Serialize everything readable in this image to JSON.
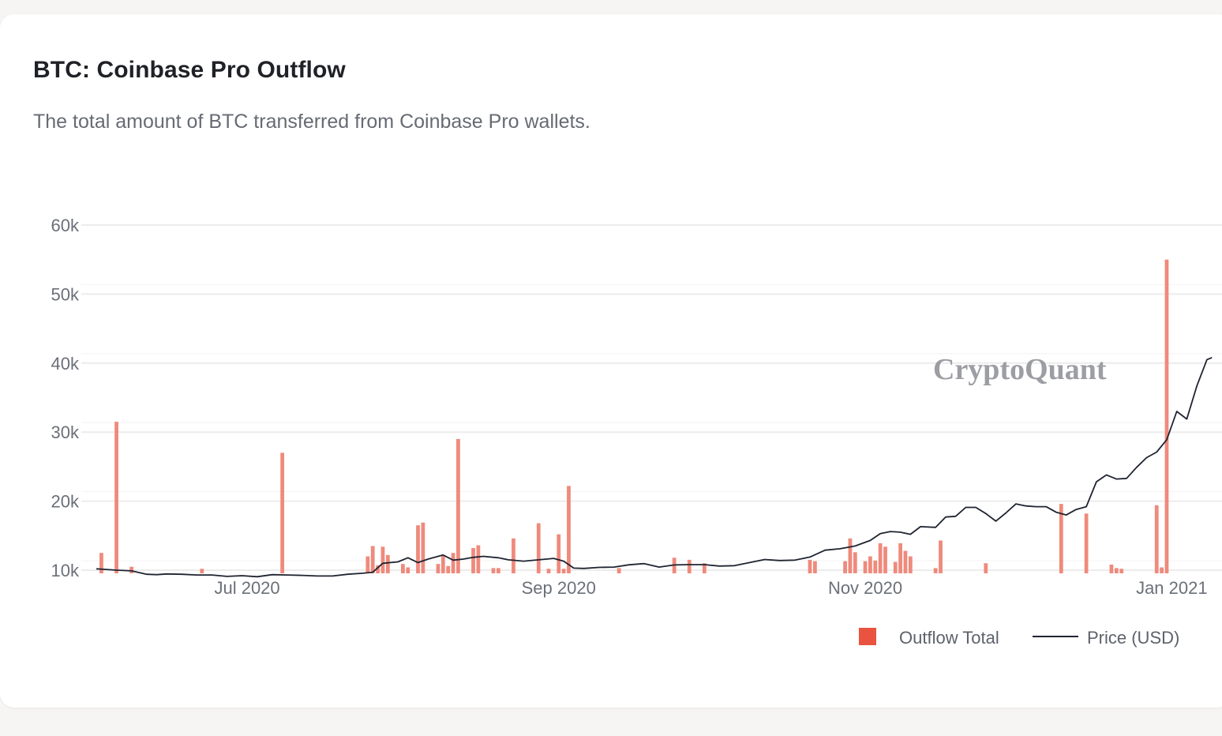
{
  "card": {
    "title": "BTC: Coinbase Pro Outflow",
    "subtitle": "The total amount of BTC transferred from Coinbase Pro wallets."
  },
  "watermark": "CryptoQuant",
  "colors": {
    "outflow": "#ef8a7c",
    "outflow_legend": "#e9533f",
    "price": "#1f2430",
    "grid": "#ececec"
  },
  "chart_data": {
    "type": "bar",
    "title": "BTC: Coinbase Pro Outflow",
    "subtitle": "The total amount of BTC transferred from Coinbase Pro wallets.",
    "x_start": "2020-06-01",
    "x_end": "2021-01-11",
    "xlim": [
      "2020-05-29",
      "2021-01-11"
    ],
    "ylim": [
      10000,
      60000
    ],
    "y_ticks": [
      10000,
      20000,
      30000,
      40000,
      50000,
      60000
    ],
    "y_tick_labels": [
      "10k",
      "20k",
      "30k",
      "40k",
      "50k",
      "60k"
    ],
    "x_ticks": [
      "2020-07-01",
      "2020-09-01",
      "2020-11-01",
      "2021-01-01"
    ],
    "x_tick_labels": [
      "Jul 2020",
      "Sep 2020",
      "Nov 2020",
      "Jan 2021"
    ],
    "grid": true,
    "legend_position": "bottom-right",
    "series": [
      {
        "name": "Outflow Total",
        "type": "bar",
        "x": [
          "2020-06-02",
          "2020-06-05",
          "2020-06-08",
          "2020-06-22",
          "2020-07-08",
          "2020-07-25",
          "2020-07-26",
          "2020-07-27",
          "2020-07-28",
          "2020-07-29",
          "2020-08-01",
          "2020-08-02",
          "2020-08-04",
          "2020-08-05",
          "2020-08-08",
          "2020-08-09",
          "2020-08-10",
          "2020-08-11",
          "2020-08-12",
          "2020-08-15",
          "2020-08-16",
          "2020-08-19",
          "2020-08-20",
          "2020-08-23",
          "2020-08-28",
          "2020-08-30",
          "2020-09-01",
          "2020-09-02",
          "2020-09-03",
          "2020-09-13",
          "2020-09-24",
          "2020-09-27",
          "2020-09-30",
          "2020-10-21",
          "2020-10-22",
          "2020-10-28",
          "2020-10-29",
          "2020-10-30",
          "2020-11-01",
          "2020-11-02",
          "2020-11-03",
          "2020-11-04",
          "2020-11-05",
          "2020-11-07",
          "2020-11-08",
          "2020-11-09",
          "2020-11-10",
          "2020-11-15",
          "2020-11-16",
          "2020-11-25",
          "2020-12-10",
          "2020-12-15",
          "2020-12-20",
          "2020-12-21",
          "2020-12-22",
          "2020-12-29",
          "2020-12-30",
          "2020-12-31"
        ],
        "values": [
          12500,
          31500,
          10500,
          10200,
          27000,
          12000,
          13500,
          10700,
          13400,
          12200,
          10900,
          10400,
          16500,
          16900,
          10900,
          12100,
          10600,
          12500,
          29000,
          13200,
          13600,
          10300,
          10300,
          14600,
          16800,
          10200,
          15200,
          10200,
          22200,
          10300,
          11800,
          11500,
          11000,
          11500,
          11300,
          11300,
          14600,
          12600,
          11300,
          12000,
          11400,
          13900,
          13400,
          11200,
          13900,
          12800,
          12000,
          10300,
          14300,
          11000,
          19600,
          18200,
          10800,
          10300,
          10200,
          19400,
          10400,
          55000
        ]
      },
      {
        "name": "Price (USD)",
        "type": "line",
        "x": [
          "2020-06-01",
          "2020-06-03",
          "2020-06-05",
          "2020-06-08",
          "2020-06-11",
          "2020-06-13",
          "2020-06-15",
          "2020-06-18",
          "2020-06-21",
          "2020-06-24",
          "2020-06-27",
          "2020-06-30",
          "2020-07-03",
          "2020-07-06",
          "2020-07-09",
          "2020-07-12",
          "2020-07-15",
          "2020-07-18",
          "2020-07-21",
          "2020-07-24",
          "2020-07-26",
          "2020-07-28",
          "2020-07-31",
          "2020-08-02",
          "2020-08-04",
          "2020-08-06",
          "2020-08-09",
          "2020-08-11",
          "2020-08-13",
          "2020-08-15",
          "2020-08-17",
          "2020-08-20",
          "2020-08-22",
          "2020-08-25",
          "2020-08-28",
          "2020-08-31",
          "2020-09-02",
          "2020-09-04",
          "2020-09-06",
          "2020-09-09",
          "2020-09-12",
          "2020-09-15",
          "2020-09-18",
          "2020-09-21",
          "2020-09-24",
          "2020-09-27",
          "2020-09-30",
          "2020-10-03",
          "2020-10-06",
          "2020-10-09",
          "2020-10-12",
          "2020-10-15",
          "2020-10-18",
          "2020-10-21",
          "2020-10-24",
          "2020-10-27",
          "2020-10-30",
          "2020-11-02",
          "2020-11-04",
          "2020-11-06",
          "2020-11-08",
          "2020-11-10",
          "2020-11-12",
          "2020-11-15",
          "2020-11-17",
          "2020-11-19",
          "2020-11-21",
          "2020-11-23",
          "2020-11-25",
          "2020-11-27",
          "2020-11-29",
          "2020-12-01",
          "2020-12-03",
          "2020-12-05",
          "2020-12-07",
          "2020-12-09",
          "2020-12-11",
          "2020-12-13",
          "2020-12-15",
          "2020-12-17",
          "2020-12-19",
          "2020-12-21",
          "2020-12-23",
          "2020-12-25",
          "2020-12-27",
          "2020-12-29",
          "2020-12-31",
          "2021-01-02",
          "2021-01-04",
          "2021-01-06",
          "2021-01-08",
          "2021-01-09"
        ],
        "values": [
          10200,
          10100,
          10000,
          9900,
          9400,
          9350,
          9450,
          9400,
          9300,
          9300,
          9100,
          9200,
          9050,
          9350,
          9300,
          9250,
          9150,
          9150,
          9400,
          9550,
          9700,
          11000,
          11200,
          11800,
          11100,
          11600,
          12200,
          11450,
          11600,
          11850,
          12000,
          11800,
          11500,
          11300,
          11500,
          11700,
          11300,
          10300,
          10250,
          10400,
          10450,
          10780,
          10950,
          10450,
          10750,
          10800,
          10800,
          10600,
          10650,
          11100,
          11550,
          11400,
          11450,
          11900,
          12900,
          13100,
          13500,
          14300,
          15300,
          15600,
          15500,
          15200,
          16300,
          16200,
          17700,
          17800,
          19100,
          19100,
          18200,
          17100,
          18300,
          19600,
          19300,
          19200,
          19200,
          18400,
          18000,
          18800,
          19200,
          22800,
          23800,
          23200,
          23300,
          24900,
          26300,
          27100,
          28900,
          33000,
          31900,
          36700,
          40500,
          40800
        ]
      }
    ]
  }
}
